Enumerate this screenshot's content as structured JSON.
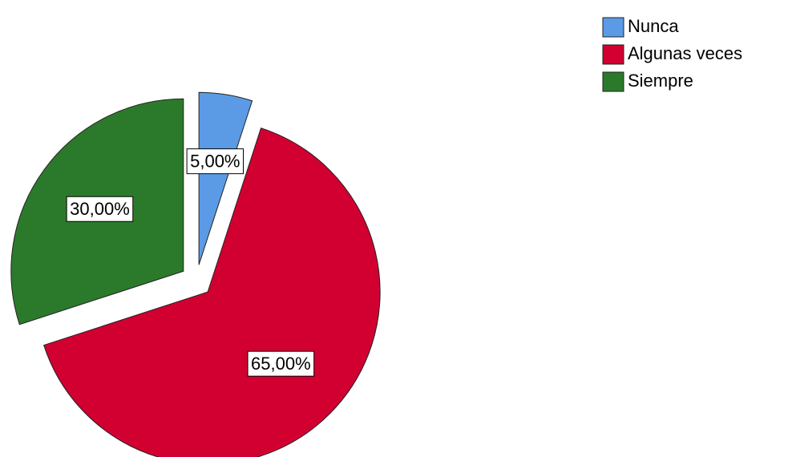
{
  "chart_data": {
    "type": "pie",
    "categories": [
      "Nunca",
      "Algunas veces",
      "Siempre"
    ],
    "values": [
      5,
      65,
      30
    ],
    "value_labels": [
      "5,00%",
      "65,00%",
      "30,00%"
    ],
    "colors": [
      "#5b9be6",
      "#d10031",
      "#2b7a2b"
    ],
    "legend": "top-right"
  }
}
